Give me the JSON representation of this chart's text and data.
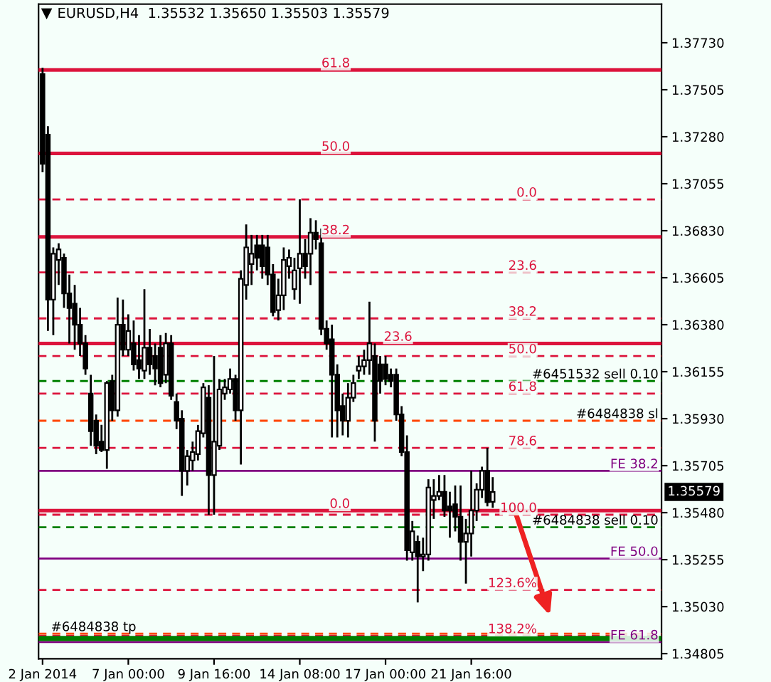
{
  "chart_data": {
    "type": "candlestick",
    "title": "EURUSD,H4  1.35532 1.35650 1.35503 1.35579",
    "categories": [
      "2 Jan 2014",
      null,
      null,
      null,
      null,
      null,
      null,
      null,
      null,
      null,
      null,
      null,
      null,
      null,
      null,
      null,
      "7 Jan 00:00",
      null,
      null,
      null,
      null,
      null,
      null,
      null,
      null,
      null,
      null,
      null,
      null,
      null,
      null,
      null,
      "9 Jan 16:00",
      null,
      null,
      null,
      null,
      null,
      null,
      null,
      null,
      null,
      null,
      null,
      null,
      null,
      null,
      null,
      "14 Jan 08:00",
      null,
      null,
      null,
      null,
      null,
      null,
      null,
      null,
      null,
      null,
      null,
      null,
      null,
      null,
      null,
      "17 Jan 00:00",
      null,
      null,
      null,
      null,
      null,
      null,
      null,
      null,
      null,
      null,
      null,
      null,
      null,
      null,
      null,
      "21 Jan 16:00",
      null,
      null,
      null,
      null,
      null,
      null,
      null,
      null,
      null,
      null,
      null,
      null,
      null,
      null,
      null,
      null,
      null,
      null,
      null,
      null,
      null,
      null,
      null,
      null,
      null,
      null,
      null,
      null,
      null,
      null,
      null,
      null,
      null,
      null,
      null
    ],
    "ohlc": [
      [
        1.3758,
        1.3761,
        1.3711,
        1.3715
      ],
      [
        1.3729,
        1.3733,
        1.3635,
        1.365
      ],
      [
        1.365,
        1.3675,
        1.3633,
        1.3672
      ],
      [
        1.3669,
        1.3677,
        1.3657,
        1.3674
      ],
      [
        1.367,
        1.3672,
        1.3646,
        1.3653
      ],
      [
        1.3653,
        1.3662,
        1.3629,
        1.3646
      ],
      [
        1.3648,
        1.3657,
        1.3626,
        1.3638
      ],
      [
        1.3638,
        1.3646,
        1.3623,
        1.3629
      ],
      [
        1.3629,
        1.3633,
        1.3614,
        1.3617
      ],
      [
        1.3605,
        1.3614,
        1.358,
        1.3587
      ],
      [
        1.3592,
        1.3595,
        1.3576,
        1.358
      ],
      [
        1.3582,
        1.359,
        1.3577,
        1.3578
      ],
      [
        1.3578,
        1.3611,
        1.3569,
        1.361
      ],
      [
        1.3611,
        1.3614,
        1.3592,
        1.3597
      ],
      [
        1.3597,
        1.3651,
        1.3594,
        1.3638
      ],
      [
        1.3638,
        1.365,
        1.3623,
        1.3626
      ],
      [
        1.3626,
        1.3643,
        1.3623,
        1.3635
      ],
      [
        1.3629,
        1.364,
        1.3616,
        1.3619
      ],
      [
        1.3621,
        1.3633,
        1.3612,
        1.3617
      ],
      [
        1.3616,
        1.3655,
        1.3612,
        1.3627
      ],
      [
        1.3627,
        1.3636,
        1.3614,
        1.3619
      ],
      [
        1.3623,
        1.3629,
        1.3609,
        1.3617
      ],
      [
        1.3627,
        1.3633,
        1.3608,
        1.361
      ],
      [
        1.3614,
        1.3634,
        1.361,
        1.3629
      ],
      [
        1.3629,
        1.3633,
        1.3602,
        1.3604
      ],
      [
        1.3601,
        1.3605,
        1.3588,
        1.3592
      ],
      [
        1.3593,
        1.3597,
        1.3556,
        1.3568
      ],
      [
        1.3568,
        1.3578,
        1.3561,
        1.3575
      ],
      [
        1.3573,
        1.3582,
        1.3568,
        1.3577
      ],
      [
        1.3576,
        1.359,
        1.3573,
        1.3587
      ],
      [
        1.3586,
        1.361,
        1.3584,
        1.3608
      ],
      [
        1.3603,
        1.3609,
        1.3547,
        1.3566
      ],
      [
        1.3566,
        1.3623,
        1.3547,
        1.3582
      ],
      [
        1.358,
        1.3612,
        1.3578,
        1.3607
      ],
      [
        1.3605,
        1.3612,
        1.3602,
        1.3608
      ],
      [
        1.3607,
        1.3617,
        1.3605,
        1.3612
      ],
      [
        1.3612,
        1.3614,
        1.3592,
        1.3597
      ],
      [
        1.3597,
        1.3664,
        1.3571,
        1.366
      ],
      [
        1.3657,
        1.3686,
        1.365,
        1.3675
      ],
      [
        1.3667,
        1.3681,
        1.3657,
        1.3672
      ],
      [
        1.3676,
        1.3681,
        1.3664,
        1.367
      ],
      [
        1.3676,
        1.3681,
        1.366,
        1.3666
      ],
      [
        1.3675,
        1.3681,
        1.3657,
        1.3662
      ],
      [
        1.3662,
        1.3667,
        1.3642,
        1.3644
      ],
      [
        1.3645,
        1.366,
        1.364,
        1.3652
      ],
      [
        1.3652,
        1.3675,
        1.3645,
        1.3669
      ],
      [
        1.3666,
        1.3674,
        1.366,
        1.367
      ],
      [
        1.3655,
        1.367,
        1.365,
        1.3664
      ],
      [
        1.3665,
        1.3698,
        1.3648,
        1.3672
      ],
      [
        1.3672,
        1.3679,
        1.366,
        1.3666
      ],
      [
        1.3672,
        1.3689,
        1.3657,
        1.3682
      ],
      [
        1.3682,
        1.3688,
        1.3674,
        1.3679
      ],
      [
        1.3677,
        1.3684,
        1.3633,
        1.3636
      ],
      [
        1.3636,
        1.364,
        1.3626,
        1.3629
      ],
      [
        1.3631,
        1.3638,
        1.3584,
        1.3614
      ],
      [
        1.3614,
        1.3619,
        1.3584,
        1.3597
      ],
      [
        1.3599,
        1.3605,
        1.3585,
        1.3592
      ],
      [
        1.3592,
        1.361,
        1.3584,
        1.3603
      ],
      [
        1.3603,
        1.3614,
        1.3601,
        1.361
      ],
      [
        1.3616,
        1.3623,
        1.3612,
        1.3618
      ],
      [
        1.3618,
        1.3626,
        1.3614,
        1.3621
      ],
      [
        1.3621,
        1.3649,
        1.3614,
        1.3629
      ],
      [
        1.3623,
        1.3629,
        1.3582,
        1.3592
      ],
      [
        1.3619,
        1.3623,
        1.3605,
        1.3611
      ],
      [
        1.3619,
        1.3623,
        1.3609,
        1.3612
      ],
      [
        1.3614,
        1.3617,
        1.3608,
        1.3611
      ],
      [
        1.3614,
        1.3617,
        1.3592,
        1.3595
      ],
      [
        1.3595,
        1.3599,
        1.3575,
        1.3577
      ],
      [
        1.3577,
        1.3585,
        1.3525,
        1.353
      ],
      [
        1.3529,
        1.3544,
        1.3525,
        1.3539
      ],
      [
        1.3534,
        1.3537,
        1.3505,
        1.3527
      ],
      [
        1.3527,
        1.3536,
        1.352,
        1.3528
      ],
      [
        1.3528,
        1.3564,
        1.3525,
        1.356
      ],
      [
        1.3554,
        1.3564,
        1.3545,
        1.3556
      ],
      [
        1.3556,
        1.3566,
        1.3554,
        1.3558
      ],
      [
        1.3558,
        1.3566,
        1.3546,
        1.3549
      ],
      [
        1.3551,
        1.3558,
        1.3536,
        1.3549
      ],
      [
        1.3552,
        1.3561,
        1.3539,
        1.3546
      ],
      [
        1.3546,
        1.3561,
        1.3525,
        1.3534
      ],
      [
        1.3534,
        1.3545,
        1.3514,
        1.3538
      ],
      [
        1.3538,
        1.3568,
        1.3527,
        1.3549
      ],
      [
        1.3549,
        1.3562,
        1.3544,
        1.3559
      ],
      [
        1.3559,
        1.357,
        1.3555,
        1.3568
      ],
      [
        1.3568,
        1.3579,
        1.3551,
        1.3553
      ],
      [
        1.35532,
        1.3565,
        1.35503,
        1.35579
      ],
      null,
      null,
      null,
      null,
      null,
      null,
      null,
      null,
      null,
      null,
      null,
      null,
      null,
      null,
      null,
      null,
      null,
      null,
      null,
      null,
      null,
      null,
      null,
      null,
      null,
      null,
      null,
      null,
      null,
      null,
      null
    ],
    "ylim": [
      1.3478,
      1.37915
    ],
    "yticks": [
      {
        "value": 1.3773,
        "label": "1.37730"
      },
      {
        "value": 1.37505,
        "label": "1.37505"
      },
      {
        "value": 1.3728,
        "label": "1.37280"
      },
      {
        "value": 1.37055,
        "label": "1.37055"
      },
      {
        "value": 1.3683,
        "label": "1.36830"
      },
      {
        "value": 1.36605,
        "label": "1.36605"
      },
      {
        "value": 1.3638,
        "label": "1.36380"
      },
      {
        "value": 1.36155,
        "label": "1.36155"
      },
      {
        "value": 1.3593,
        "label": "1.35930"
      },
      {
        "value": 1.35705,
        "label": "1.35705"
      },
      {
        "value": 1.3548,
        "label": "1.35480"
      },
      {
        "value": 1.35255,
        "label": "1.35255"
      },
      {
        "value": 1.3503,
        "label": "1.35030"
      },
      {
        "value": 1.34805,
        "label": "1.34805"
      }
    ],
    "ref_lines": [
      {
        "axis": "y",
        "value": 1.376,
        "color": "#dc143c",
        "line_style": "solid"
      },
      {
        "axis": "y",
        "value": 1.372,
        "color": "#dc143c",
        "line_style": "solid"
      },
      {
        "axis": "y",
        "value": 1.368,
        "color": "#dc143c",
        "line_style": "solid"
      },
      {
        "axis": "y",
        "value": 1.3629,
        "color": "#dc143c",
        "line_style": "solid"
      },
      {
        "axis": "y",
        "value": 1.3549,
        "color": "#dc143c",
        "line_style": "solid"
      },
      {
        "axis": "y",
        "value": 1.3698,
        "color": "#dc143c",
        "line_style": "dashed"
      },
      {
        "axis": "y",
        "value": 1.3663,
        "color": "#dc143c",
        "line_style": "dashed"
      },
      {
        "axis": "y",
        "value": 1.3641,
        "color": "#dc143c",
        "line_style": "dashed"
      },
      {
        "axis": "y",
        "value": 1.3623,
        "color": "#dc143c",
        "line_style": "dashed"
      },
      {
        "axis": "y",
        "value": 1.3605,
        "color": "#dc143c",
        "line_style": "dashed"
      },
      {
        "axis": "y",
        "value": 1.3579,
        "color": "#dc143c",
        "line_style": "dashed"
      },
      {
        "axis": "y",
        "value": 1.3547,
        "color": "#dc143c",
        "line_style": "dashed"
      },
      {
        "axis": "y",
        "value": 1.3511,
        "color": "#dc143c",
        "line_style": "dashed"
      },
      {
        "axis": "y",
        "value": 1.3489,
        "color": "#dc143c",
        "line_style": "dashed"
      },
      {
        "axis": "y",
        "value": 1.3568,
        "color": "#800080",
        "line_style": "solid"
      },
      {
        "axis": "y",
        "value": 1.3526,
        "color": "#800080",
        "line_style": "solid"
      },
      {
        "axis": "y",
        "value": 1.3486,
        "color": "#800080",
        "line_style": "solid"
      },
      {
        "axis": "y",
        "value": 1.3611,
        "color": "#008000",
        "line_style": "dashed"
      },
      {
        "axis": "y",
        "value": 1.3592,
        "color": "#ff4500",
        "line_style": "dashed"
      },
      {
        "axis": "y",
        "value": 1.3541,
        "color": "#008000",
        "line_style": "dashed"
      },
      {
        "axis": "y",
        "value": 1.349,
        "color": "#ff4500",
        "line_style": "dashed"
      }
    ],
    "annotations": [
      {
        "text": "61.8",
        "y": 1.376
      },
      {
        "text": "50.0",
        "y": 1.372
      },
      {
        "text": "38.2",
        "y": 1.368
      },
      {
        "text": "23.6",
        "y": 1.3629
      },
      {
        "text": "0.0",
        "y": 1.3549
      },
      {
        "text": "0.0",
        "y": 1.3698
      },
      {
        "text": "23.6",
        "y": 1.3663
      },
      {
        "text": "38.2",
        "y": 1.3641
      },
      {
        "text": "50.0",
        "y": 1.3623
      },
      {
        "text": "61.8",
        "y": 1.3605
      },
      {
        "text": "78.6",
        "y": 1.3579
      },
      {
        "text": "100.0",
        "y": 1.3547
      },
      {
        "text": "123.6%",
        "y": 1.3511
      },
      {
        "text": "138.2%",
        "y": 1.3489
      },
      {
        "text": "FE 38.2",
        "y": 1.3568
      },
      {
        "text": "FE 50.0",
        "y": 1.3526
      },
      {
        "text": "FE 61.8",
        "y": 1.3486
      },
      {
        "text": "#6451532 sell 0.10",
        "y": 1.3611
      },
      {
        "text": "#6484838 sl",
        "y": 1.3592
      },
      {
        "text": "#6484838 sell 0.10",
        "y": 1.3541
      },
      {
        "text": "#6484838 tp",
        "y": 1.349
      },
      "1.35579"
    ],
    "bands": [
      {
        "axis": "y",
        "from": 1.34865,
        "to": 1.3489,
        "color": "#007f00"
      }
    ],
    "grid": false,
    "legend": false
  }
}
